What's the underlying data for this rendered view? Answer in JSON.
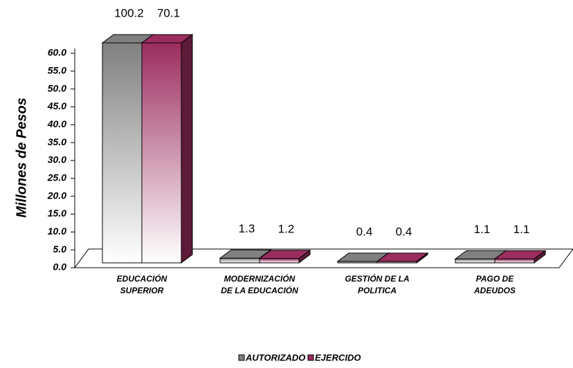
{
  "chart_data": {
    "type": "bar3d",
    "y_label": "Millones de Pesos",
    "categories": [
      "EDUCACIÓN\nSUPERIOR",
      "MODERNIZACIÓN\nDE LA EDUCACIÓN",
      "GESTIÓN DE LA\nPOLITICA",
      "PAGO DE\nADEUDOS"
    ],
    "series": [
      {
        "name": "AUTORIZADO",
        "color": "#808080",
        "values": [
          100.2,
          1.3,
          0.4,
          1.1
        ]
      },
      {
        "name": "EJERCIDO",
        "color": "#9b2d5f",
        "values": [
          70.1,
          1.2,
          0.4,
          1.1
        ]
      }
    ],
    "ylim": [
      0,
      60
    ],
    "yticks": [
      {
        "value": 0,
        "label": "0.0"
      },
      {
        "value": 5,
        "label": "5.0"
      },
      {
        "value": 10,
        "label": "10.0"
      },
      {
        "value": 15,
        "label": "15.0"
      },
      {
        "value": 20,
        "label": "20.0"
      },
      {
        "value": 25,
        "label": "25.0"
      },
      {
        "value": 30,
        "label": "30.0"
      },
      {
        "value": 35,
        "label": "35.0"
      },
      {
        "value": 40,
        "label": "40.0"
      },
      {
        "value": 45,
        "label": "45.0"
      },
      {
        "value": 50,
        "label": "50.0"
      },
      {
        "value": 55,
        "label": "55.0"
      },
      {
        "value": 60,
        "label": "60.0"
      }
    ],
    "legend": "bottom"
  }
}
